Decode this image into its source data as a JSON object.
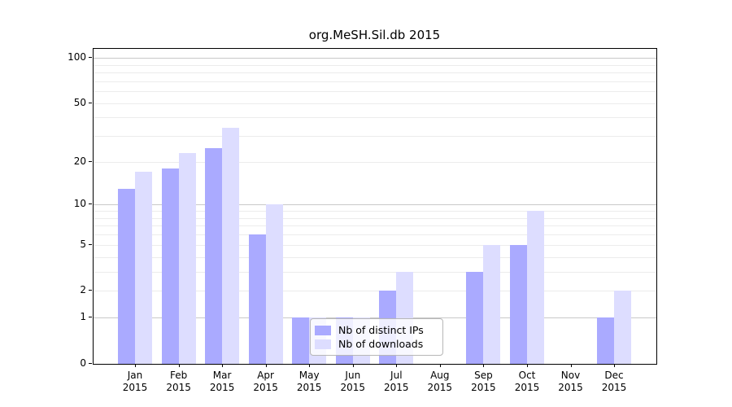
{
  "title": "org.MeSH.Sil.db 2015",
  "chart_data": {
    "type": "bar",
    "title": "org.MeSH.Sil.db 2015",
    "scale": "log10(1+x)",
    "categories": [
      "Jan",
      "Feb",
      "Mar",
      "Apr",
      "May",
      "Jun",
      "Jul",
      "Aug",
      "Sep",
      "Oct",
      "Nov",
      "Dec"
    ],
    "category_year": "2015",
    "series": [
      {
        "name": "Nb of distinct IPs",
        "color": "#aaaaff",
        "values": [
          13,
          18,
          25,
          6,
          1,
          1,
          2,
          0,
          3,
          5,
          0,
          1
        ]
      },
      {
        "name": "Nb of downloads",
        "color": "#ddddff",
        "values": [
          17,
          23,
          34,
          10,
          1,
          1,
          3,
          0,
          5,
          9,
          0,
          2
        ]
      }
    ],
    "y_ticks": [
      0,
      1,
      2,
      5,
      10,
      20,
      50,
      100
    ],
    "y_minor_gridlines": [
      2,
      3,
      4,
      5,
      6,
      7,
      8,
      9,
      20,
      30,
      40,
      50,
      60,
      70,
      80,
      90
    ],
    "y_major_gridlines": [
      1,
      10,
      100
    ],
    "ylim": [
      0,
      116
    ],
    "xlabel": "",
    "ylabel": "",
    "grid": true,
    "legend_position": "bottom-center",
    "colors": {
      "axis": "#000000",
      "minor_grid": "#ececec",
      "major_grid": "#c9c9c9",
      "background": "#ffffff"
    }
  }
}
